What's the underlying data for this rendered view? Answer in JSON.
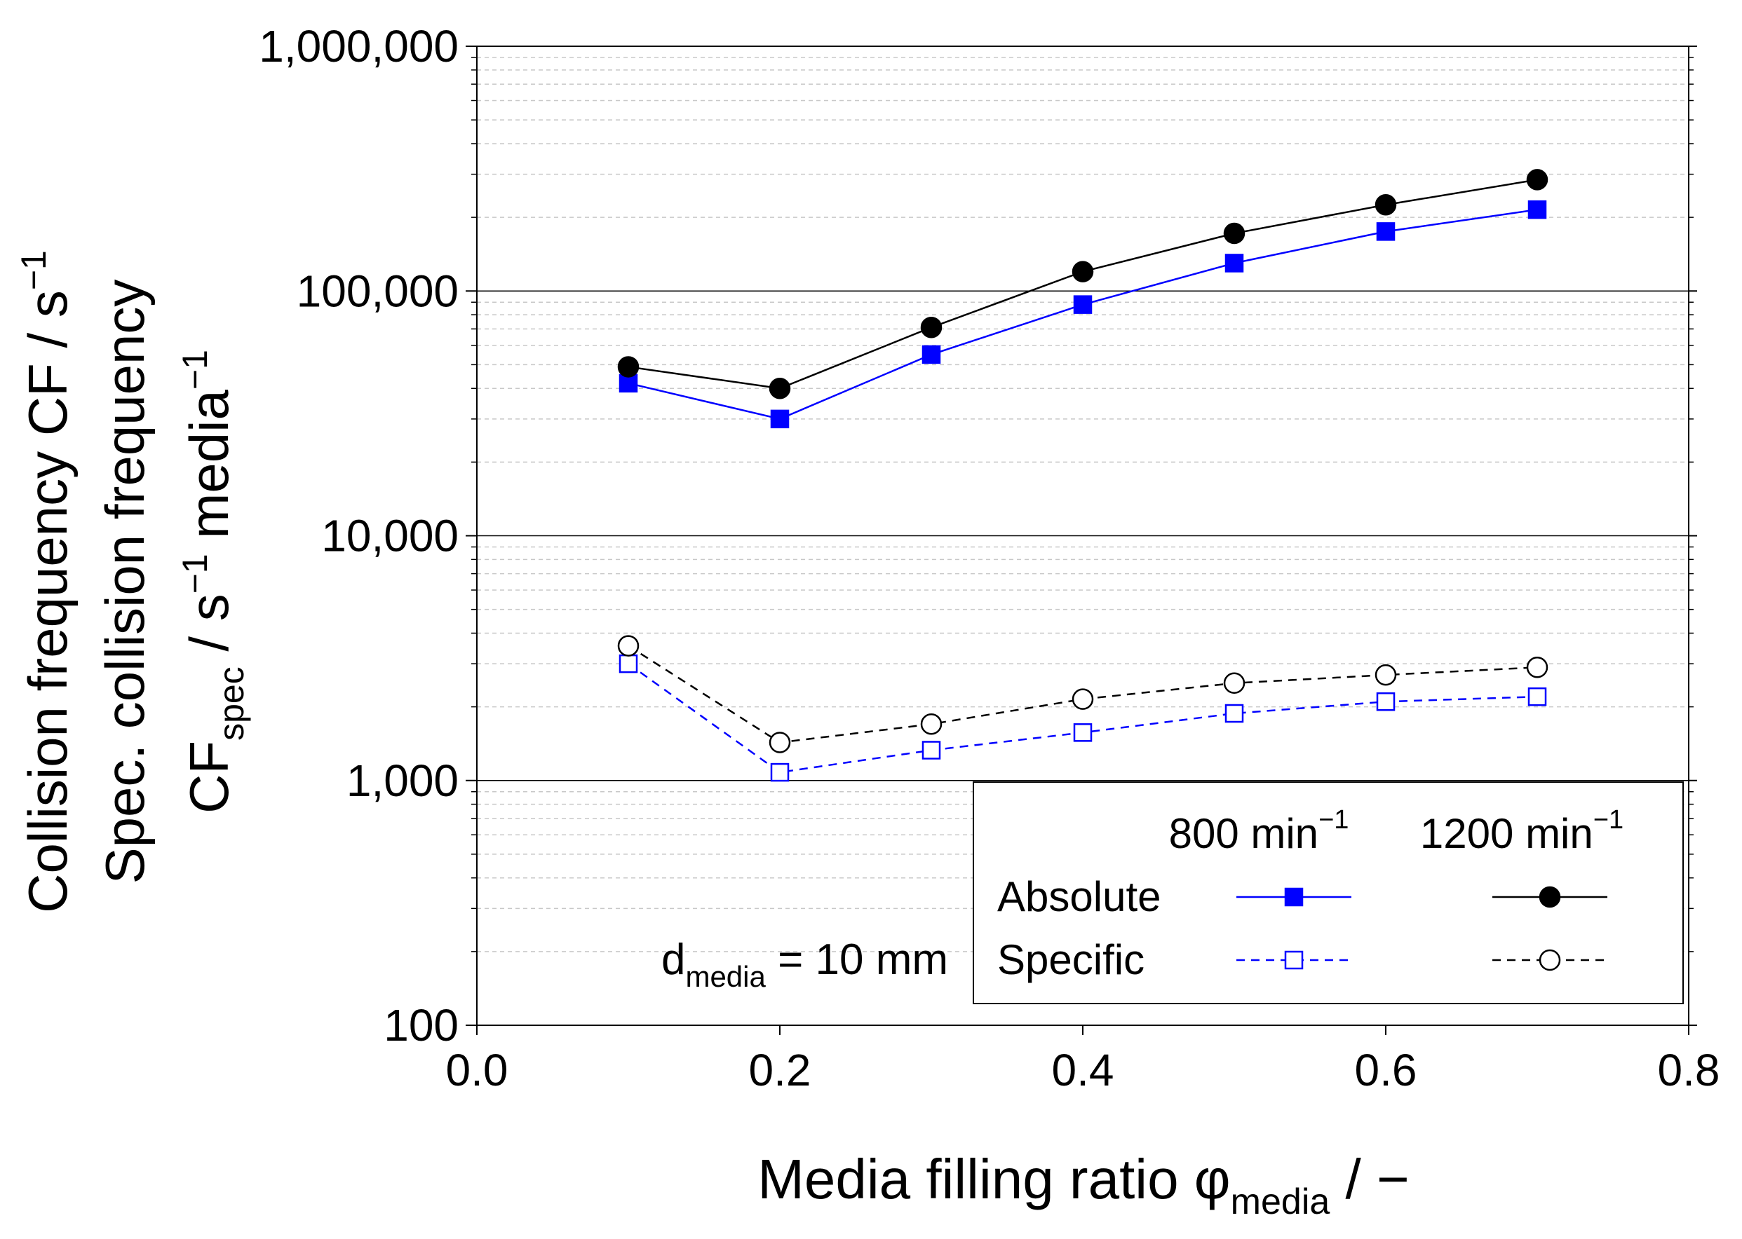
{
  "chart_data": {
    "type": "line",
    "x": [
      0.1,
      0.2,
      0.3,
      0.4,
      0.5,
      0.6,
      0.7
    ],
    "xlabel": {
      "main": "Media filling ratio ",
      "symbol": "φ",
      "sub": "media",
      "suffix": " / −"
    },
    "ylabel_lines": [
      {
        "parts": [
          {
            "t": "Collision frequency CF / s",
            "s": "normal"
          },
          {
            "t": "−1",
            "s": "sup"
          }
        ]
      },
      {
        "parts": [
          {
            "t": "Spec. collision frequency",
            "s": "normal"
          }
        ]
      },
      {
        "parts": [
          {
            "t": "CF",
            "s": "normal"
          },
          {
            "t": "spec",
            "s": "sub"
          },
          {
            "t": " / s",
            "s": "normal"
          },
          {
            "t": "−1",
            "s": "sup"
          },
          {
            "t": " media",
            "s": "normal"
          },
          {
            "t": "−1",
            "s": "sup"
          }
        ]
      }
    ],
    "xlim": [
      0.0,
      0.8
    ],
    "ylim": [
      100,
      1000000
    ],
    "yscale": "log",
    "x_ticks": [
      0.0,
      0.2,
      0.4,
      0.6,
      0.8
    ],
    "x_tick_labels": [
      "0.0",
      "0.2",
      "0.4",
      "0.6",
      "0.8"
    ],
    "y_ticks": [
      100,
      1000,
      10000,
      100000,
      1000000
    ],
    "y_tick_labels": [
      "100",
      "1,000",
      "10,000",
      "100,000",
      "1,000,000"
    ],
    "grid": "minor log gridlines (dashed gray)",
    "series": [
      {
        "name": "Absolute 800 min−1",
        "color": "#0000ff",
        "dash": "solid",
        "marker": "square",
        "filled": true,
        "values": [
          42000,
          30000,
          55000,
          88000,
          130000,
          175000,
          215000
        ]
      },
      {
        "name": "Absolute 1200 min−1",
        "color": "#000000",
        "dash": "solid",
        "marker": "circle",
        "filled": true,
        "values": [
          49000,
          40000,
          71000,
          120000,
          172000,
          225000,
          285000
        ]
      },
      {
        "name": "Specific 800 min−1",
        "color": "#0000ff",
        "dash": "dashed",
        "marker": "square",
        "filled": false,
        "values": [
          3000,
          1080,
          1330,
          1570,
          1880,
          2100,
          2200
        ]
      },
      {
        "name": "Specific 1200 min−1",
        "color": "#000000",
        "dash": "dashed",
        "marker": "circle",
        "filled": false,
        "values": [
          3550,
          1430,
          1700,
          2150,
          2500,
          2700,
          2900
        ]
      }
    ],
    "legend": {
      "position": "bottom-right",
      "col1": "800 min",
      "col2": "1200 min",
      "sup": "−1",
      "row1": "Absolute",
      "row2": "Specific"
    },
    "annotation": {
      "base": "d",
      "sub": "media",
      "rest": " = 10 mm"
    }
  }
}
